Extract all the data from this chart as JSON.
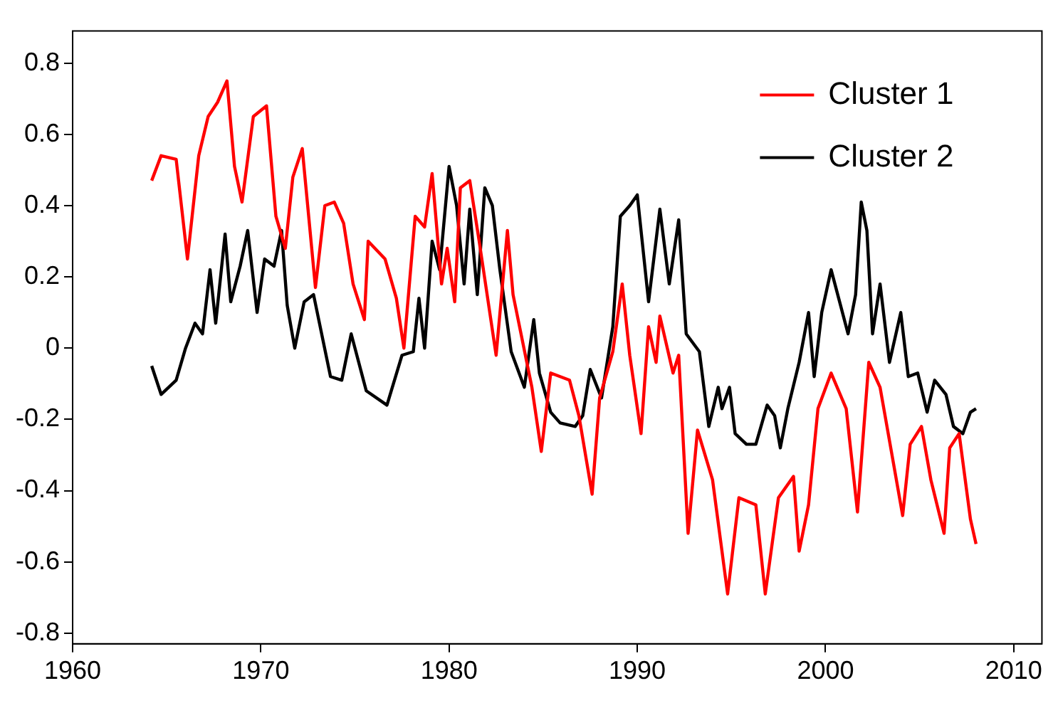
{
  "chart_data": {
    "type": "line",
    "xlim": [
      1960,
      2011.5
    ],
    "xticks": [
      1960,
      1970,
      1980,
      1990,
      2000,
      2010
    ],
    "ylim": [
      -0.83,
      0.89
    ],
    "yticks": [
      -0.8,
      -0.6,
      -0.4,
      -0.2,
      0,
      0.2,
      0.4,
      0.6,
      0.8
    ],
    "grid": false,
    "legend": "top right",
    "marker": "none",
    "line_style": "solid",
    "series": [
      {
        "name": "Cluster 1",
        "color": "#ff0000",
        "x": [
          1964.2,
          1964.7,
          1965.5,
          1966.1,
          1966.7,
          1967.2,
          1967.7,
          1968.2,
          1968.6,
          1969.0,
          1969.6,
          1970.3,
          1970.8,
          1971.3,
          1971.7,
          1972.2,
          1972.9,
          1973.4,
          1973.9,
          1974.4,
          1974.9,
          1975.5,
          1975.7,
          1976.6,
          1977.2,
          1977.6,
          1978.2,
          1978.7,
          1979.1,
          1979.6,
          1979.9,
          1980.3,
          1980.6,
          1981.1,
          1981.6,
          1982.5,
          1983.1,
          1983.4,
          1984.4,
          1984.9,
          1985.4,
          1986.4,
          1986.9,
          1987.6,
          1988.0,
          1988.7,
          1989.2,
          1989.6,
          1990.2,
          1990.6,
          1991.0,
          1991.2,
          1991.9,
          1992.2,
          1992.7,
          1993.2,
          1994.0,
          1994.8,
          1995.4,
          1996.3,
          1996.8,
          1997.5,
          1998.3,
          1998.6,
          1999.1,
          1999.6,
          2000.3,
          2001.1,
          2001.7,
          2002.3,
          2002.9,
          2003.6,
          2004.1,
          2004.5,
          2005.1,
          2005.6,
          2006.3,
          2006.6,
          2007.1,
          2007.7,
          2008.0
        ],
        "values": [
          0.47,
          0.54,
          0.53,
          0.25,
          0.54,
          0.65,
          0.69,
          0.75,
          0.51,
          0.41,
          0.65,
          0.68,
          0.37,
          0.28,
          0.48,
          0.56,
          0.17,
          0.4,
          0.41,
          0.35,
          0.18,
          0.08,
          0.3,
          0.25,
          0.14,
          0.0,
          0.37,
          0.34,
          0.49,
          0.18,
          0.28,
          0.13,
          0.45,
          0.47,
          0.3,
          -0.02,
          0.33,
          0.15,
          -0.11,
          -0.29,
          -0.07,
          -0.09,
          -0.19,
          -0.41,
          -0.14,
          -0.01,
          0.18,
          -0.02,
          -0.24,
          0.06,
          -0.04,
          0.09,
          -0.07,
          -0.02,
          -0.52,
          -0.23,
          -0.37,
          -0.69,
          -0.42,
          -0.44,
          -0.69,
          -0.42,
          -0.36,
          -0.57,
          -0.44,
          -0.17,
          -0.07,
          -0.17,
          -0.46,
          -0.04,
          -0.11,
          -0.32,
          -0.47,
          -0.27,
          -0.22,
          -0.37,
          -0.52,
          -0.28,
          -0.24,
          -0.48,
          -0.55
        ]
      },
      {
        "name": "Cluster 2",
        "color": "#000000",
        "x": [
          1964.2,
          1964.7,
          1965.5,
          1966.0,
          1966.5,
          1966.9,
          1967.3,
          1967.6,
          1968.1,
          1968.4,
          1968.9,
          1969.3,
          1969.8,
          1970.2,
          1970.7,
          1971.1,
          1971.4,
          1971.8,
          1972.3,
          1972.8,
          1973.7,
          1974.3,
          1974.8,
          1975.6,
          1976.7,
          1977.5,
          1978.1,
          1978.4,
          1978.7,
          1979.1,
          1979.5,
          1980.0,
          1980.4,
          1980.8,
          1981.1,
          1981.5,
          1981.9,
          1982.3,
          1982.7,
          1983.3,
          1984.0,
          1984.5,
          1984.8,
          1985.4,
          1985.9,
          1986.7,
          1987.1,
          1987.5,
          1988.1,
          1988.7,
          1989.1,
          1989.6,
          1990.0,
          1990.6,
          1991.2,
          1991.7,
          1992.2,
          1992.6,
          1993.3,
          1993.8,
          1994.3,
          1994.5,
          1994.9,
          1995.2,
          1995.8,
          1996.3,
          1996.9,
          1997.3,
          1997.6,
          1998.0,
          1998.6,
          1999.1,
          1999.4,
          1999.8,
          2000.3,
          2000.7,
          2001.2,
          2001.6,
          2001.9,
          2002.2,
          2002.5,
          2002.9,
          2003.4,
          2004.0,
          2004.4,
          2004.9,
          2005.4,
          2005.8,
          2006.4,
          2006.8,
          2007.3,
          2007.7,
          2008.0
        ],
        "values": [
          -0.05,
          -0.13,
          -0.09,
          0.0,
          0.07,
          0.04,
          0.22,
          0.07,
          0.32,
          0.13,
          0.23,
          0.33,
          0.1,
          0.25,
          0.23,
          0.33,
          0.12,
          0.0,
          0.13,
          0.15,
          -0.08,
          -0.09,
          0.04,
          -0.12,
          -0.16,
          -0.02,
          -0.01,
          0.14,
          0.0,
          0.3,
          0.22,
          0.51,
          0.4,
          0.18,
          0.39,
          0.15,
          0.45,
          0.4,
          0.22,
          -0.01,
          -0.11,
          0.08,
          -0.07,
          -0.18,
          -0.21,
          -0.22,
          -0.19,
          -0.06,
          -0.14,
          0.06,
          0.37,
          0.4,
          0.43,
          0.13,
          0.39,
          0.18,
          0.36,
          0.04,
          -0.01,
          -0.22,
          -0.11,
          -0.17,
          -0.11,
          -0.24,
          -0.27,
          -0.27,
          -0.16,
          -0.19,
          -0.28,
          -0.17,
          -0.04,
          0.1,
          -0.08,
          0.1,
          0.22,
          0.14,
          0.04,
          0.15,
          0.41,
          0.33,
          0.04,
          0.18,
          -0.04,
          0.1,
          -0.08,
          -0.07,
          -0.18,
          -0.09,
          -0.13,
          -0.22,
          -0.24,
          -0.18,
          -0.17
        ]
      }
    ]
  }
}
